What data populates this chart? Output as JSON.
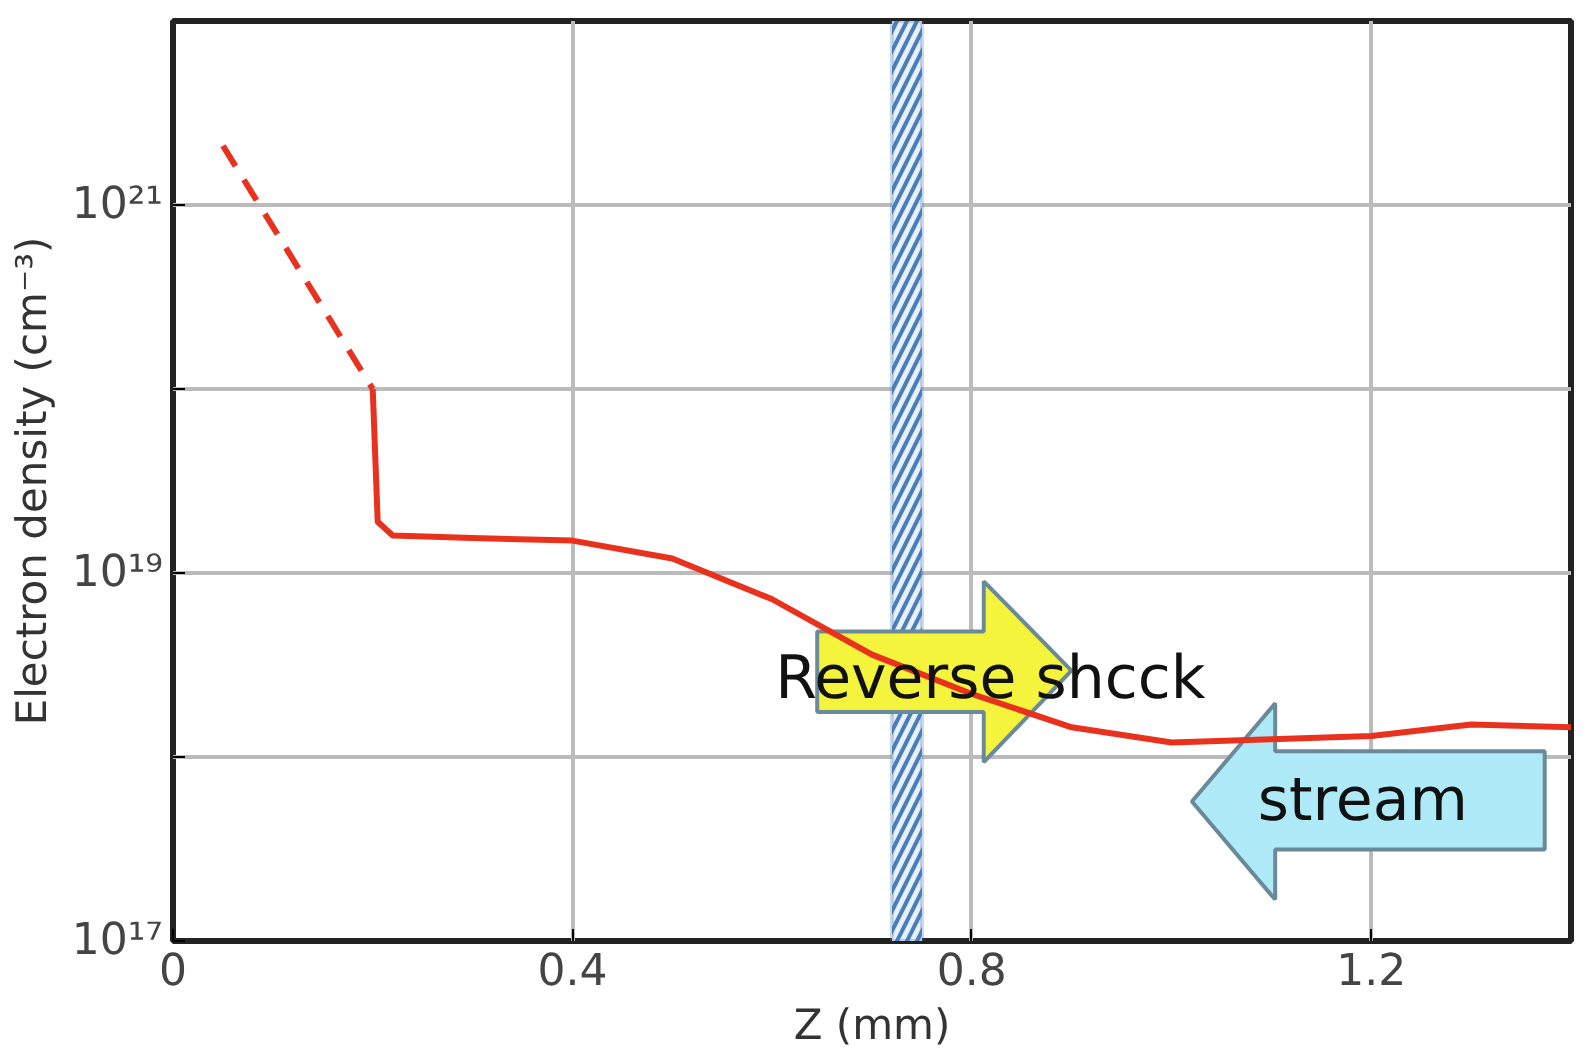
{
  "chart_data": {
    "type": "line",
    "xlabel": "Z (mm)",
    "ylabel": "Electron density (cm⁻³)",
    "series": [
      {
        "color": "#e8321e",
        "line_style": "dashed",
        "x": [
          0.05,
          0.2
        ],
        "values": [
          2.1e+21,
          1e+20
        ]
      },
      {
        "color": "#e8321e",
        "line_style": "solid",
        "x": [
          0.2,
          0.205,
          0.22,
          0.3,
          0.4,
          0.5,
          0.6,
          0.7,
          0.8,
          0.9,
          1.0,
          1.1,
          1.2,
          1.3,
          1.4
        ],
        "values": [
          1e+20,
          1.9e+19,
          1.6e+19,
          1.55e+19,
          1.5e+19,
          1.2e+19,
          7.2e+18,
          3.6e+18,
          2.2e+18,
          1.45e+18,
          1.2e+18,
          1.25e+18,
          1.3e+18,
          1.5e+18,
          1.45e+18
        ]
      }
    ],
    "xlim": [
      0,
      1.4
    ],
    "xticks": [
      0,
      0.4,
      0.8,
      1.2
    ],
    "ylim": [
      1e+17,
      1e+22
    ],
    "yticks": [
      {
        "value": 1e+17,
        "label": "10¹⁷"
      },
      {
        "value": 1e+18,
        "label": null
      },
      {
        "value": 1e+19,
        "label": "10¹⁹"
      },
      {
        "value": 1e+20,
        "label": null
      },
      {
        "value": 1e+21,
        "label": "10²¹"
      }
    ],
    "log": "y",
    "grid": true,
    "bands": [
      {
        "axis": "x",
        "from": 0.72,
        "to": 0.75,
        "color": "#4a7ebb"
      }
    ],
    "annotations": [
      "Reverse shcck",
      "stream"
    ]
  }
}
